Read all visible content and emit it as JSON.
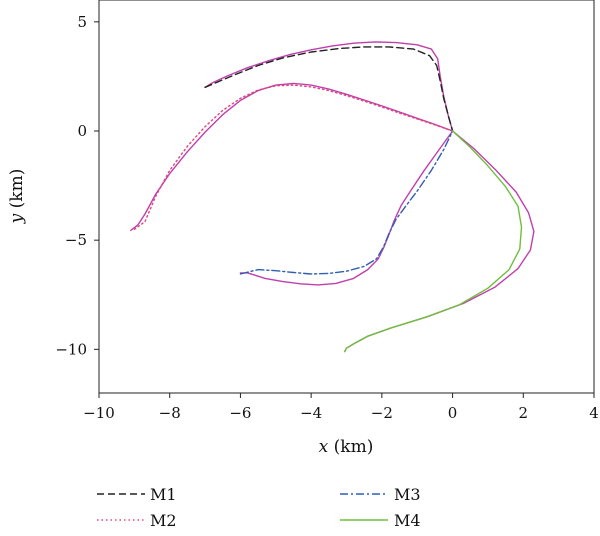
{
  "chart_data": {
    "type": "line",
    "xlabel_var": "x",
    "xlabel_unit": " (km)",
    "ylabel_var": "y",
    "ylabel_unit": " (km)",
    "xlim": [
      -10,
      4
    ],
    "ylim": [
      -12,
      6
    ],
    "xticks": [
      -10,
      -8,
      -6,
      -4,
      -2,
      0,
      2,
      4
    ],
    "yticks": [
      5,
      0,
      -5,
      -10
    ],
    "xtick_labels": [
      "−10",
      "−8",
      "−6",
      "−4",
      "−2",
      "0",
      "2",
      "4"
    ],
    "ytick_labels": [
      "5",
      "0",
      "−5",
      "−10"
    ],
    "grid": false,
    "legend_position": "bottom",
    "legend": [
      "M1",
      "M2",
      "M3",
      "M4"
    ],
    "colors": {
      "M1": "#222222",
      "M2": "#e0457b",
      "M3": "#2f5fb3",
      "M4": "#6fbf3f",
      "reference": "#c03fae"
    },
    "series": [
      {
        "name": "M1",
        "style": "dashed",
        "x": [
          -7.0,
          -6.2,
          -5.5,
          -4.8,
          -4.0,
          -3.2,
          -2.5,
          -1.8,
          -1.1,
          -0.65,
          -0.45,
          -0.35,
          -0.25,
          -0.12,
          0.0
        ],
        "y": [
          2.0,
          2.55,
          3.0,
          3.35,
          3.62,
          3.78,
          3.85,
          3.85,
          3.75,
          3.45,
          3.0,
          2.3,
          1.5,
          0.7,
          0.0
        ]
      },
      {
        "name": "M2",
        "style": "dotted",
        "x": [
          -9.0,
          -8.7,
          -8.4,
          -8.0,
          -7.5,
          -7.0,
          -6.5,
          -6.0,
          -5.5,
          -5.0,
          -4.5,
          -4.0,
          -3.5,
          -3.0,
          -2.5,
          -2.0,
          -1.5,
          -1.0,
          -0.5,
          0.0
        ],
        "y": [
          -4.5,
          -4.15,
          -3.0,
          -1.8,
          -0.7,
          0.2,
          0.95,
          1.5,
          1.88,
          2.07,
          2.1,
          2.02,
          1.85,
          1.62,
          1.37,
          1.1,
          0.82,
          0.55,
          0.28,
          0.0
        ]
      },
      {
        "name": "M3",
        "style": "dashdot",
        "x": [
          -6.0,
          -5.5,
          -5.0,
          -4.5,
          -4.0,
          -3.5,
          -3.0,
          -2.5,
          -2.15,
          -1.95,
          -1.8,
          -1.6,
          -1.35,
          -1.0,
          -0.6,
          -0.25,
          0.0
        ],
        "y": [
          -6.55,
          -6.35,
          -6.4,
          -6.48,
          -6.55,
          -6.52,
          -6.42,
          -6.2,
          -5.85,
          -5.3,
          -4.7,
          -4.05,
          -3.5,
          -2.75,
          -1.8,
          -0.85,
          0.0
        ]
      },
      {
        "name": "M4",
        "style": "solid",
        "x": [
          0.0,
          0.5,
          1.0,
          1.5,
          1.85,
          1.95,
          1.9,
          1.6,
          1.0,
          0.2,
          -0.8,
          -1.8,
          -2.4,
          -2.8,
          -3.0,
          -3.05
        ],
        "y": [
          0.0,
          -0.75,
          -1.6,
          -2.55,
          -3.45,
          -4.4,
          -5.4,
          -6.35,
          -7.2,
          -7.95,
          -8.55,
          -9.05,
          -9.4,
          -9.75,
          -9.95,
          -10.1
        ]
      },
      {
        "name": "",
        "style": "solid",
        "x": [
          0.0,
          -0.12,
          -0.25,
          -0.35,
          -0.42,
          -0.6,
          -1.0,
          -1.6,
          -2.2,
          -2.8,
          -3.4,
          -4.0,
          -4.6,
          -5.2,
          -5.8,
          -6.4,
          -6.8,
          -7.0
        ],
        "y": [
          0.0,
          0.7,
          1.6,
          2.5,
          3.3,
          3.75,
          3.95,
          4.05,
          4.08,
          4.02,
          3.9,
          3.72,
          3.5,
          3.22,
          2.9,
          2.5,
          2.2,
          2.0
        ]
      },
      {
        "name": "",
        "style": "solid",
        "x": [
          0.0,
          -0.5,
          -1.0,
          -1.5,
          -2.0,
          -2.5,
          -3.0,
          -3.5,
          -4.0,
          -4.5,
          -5.0,
          -5.5,
          -6.0,
          -6.5,
          -7.0,
          -7.5,
          -8.0,
          -8.4,
          -8.7,
          -8.9,
          -9.1
        ],
        "y": [
          0.0,
          0.3,
          0.58,
          0.87,
          1.15,
          1.42,
          1.68,
          1.92,
          2.1,
          2.18,
          2.1,
          1.85,
          1.4,
          0.75,
          -0.05,
          -0.95,
          -1.95,
          -2.9,
          -3.8,
          -4.3,
          -4.55
        ]
      },
      {
        "name": "",
        "style": "solid",
        "x": [
          0.0,
          -0.4,
          -0.8,
          -1.15,
          -1.45,
          -1.65,
          -1.8,
          -1.95,
          -2.1,
          -2.4,
          -2.8,
          -3.3,
          -3.8,
          -4.3,
          -4.8,
          -5.3,
          -5.6,
          -5.8,
          -6.0
        ],
        "y": [
          0.0,
          -0.9,
          -1.8,
          -2.65,
          -3.4,
          -4.1,
          -4.75,
          -5.35,
          -5.85,
          -6.35,
          -6.75,
          -6.98,
          -7.05,
          -7.0,
          -6.9,
          -6.75,
          -6.6,
          -6.5,
          -6.5
        ]
      },
      {
        "name": "",
        "style": "solid",
        "x": [
          0.0,
          0.6,
          1.2,
          1.8,
          2.15,
          2.3,
          2.2,
          1.85,
          1.2,
          0.3,
          -0.7,
          -1.7,
          -2.4,
          -2.8,
          -3.0,
          -3.05
        ],
        "y": [
          0.0,
          -0.8,
          -1.75,
          -2.8,
          -3.75,
          -4.6,
          -5.45,
          -6.3,
          -7.15,
          -7.9,
          -8.5,
          -9.0,
          -9.4,
          -9.75,
          -9.95,
          -10.1
        ]
      }
    ]
  }
}
